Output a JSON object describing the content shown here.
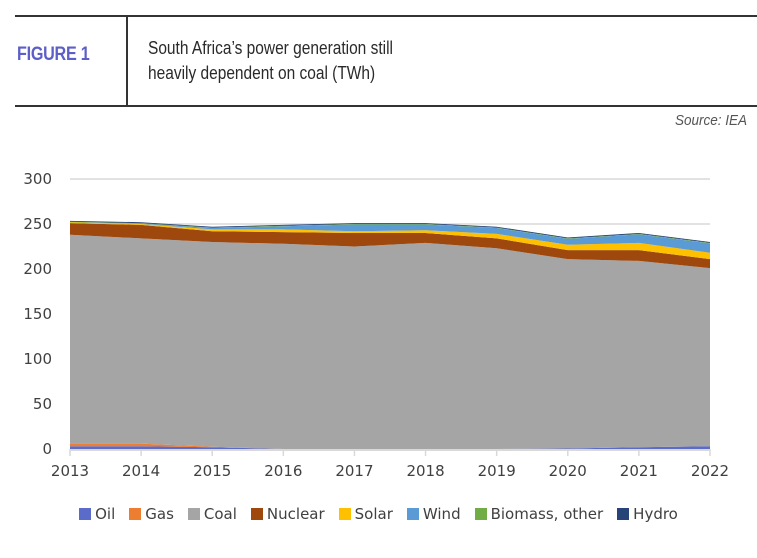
{
  "header": {
    "figure_label": "FIGURE 1",
    "title_line1": "South Africa’s power generation still",
    "title_line2": "heavily dependent on coal (TWh)",
    "source": "Source: IEA"
  },
  "chart_data": {
    "type": "area",
    "stacked": true,
    "title": "South Africa’s power generation still heavily dependent on coal (TWh)",
    "xlabel": "",
    "ylabel": "",
    "ylim": [
      0,
      300
    ],
    "yticks": [
      0,
      50,
      100,
      150,
      200,
      250,
      300
    ],
    "grid": true,
    "legend_position": "bottom",
    "categories": [
      "2013",
      "2014",
      "2015",
      "2016",
      "2017",
      "2018",
      "2019",
      "2020",
      "2021",
      "2022"
    ],
    "series": [
      {
        "name": "Oil",
        "color": "#5b6bc9",
        "values": [
          3,
          3,
          2,
          0,
          0,
          0,
          0,
          0.5,
          2,
          3
        ]
      },
      {
        "name": "Gas",
        "color": "#ed7d31",
        "values": [
          3,
          3,
          0.5,
          0,
          0,
          0,
          0,
          0,
          0,
          0
        ]
      },
      {
        "name": "Coal",
        "color": "#a5a5a5",
        "values": [
          232,
          228,
          227.5,
          228,
          225,
          229,
          223,
          210.5,
          207,
          198
        ]
      },
      {
        "name": "Nuclear",
        "color": "#9e480e",
        "values": [
          13,
          15,
          12,
          13,
          15,
          11,
          11,
          10,
          12,
          10
        ]
      },
      {
        "name": "Solar",
        "color": "#ffc000",
        "values": [
          1,
          1,
          2,
          3,
          2,
          3,
          5,
          6,
          8,
          7
        ]
      },
      {
        "name": "Wind",
        "color": "#5b9bd5",
        "values": [
          0,
          0.5,
          1.5,
          3.5,
          7.5,
          6.5,
          6.5,
          6.5,
          9.5,
          10.5
        ]
      },
      {
        "name": "Biomass, other",
        "color": "#70ad47",
        "values": [
          0.5,
          0.5,
          0.5,
          0.5,
          0.5,
          0.5,
          0.5,
          0.5,
          0.5,
          0.5
        ]
      },
      {
        "name": "Hydro",
        "color": "#264478",
        "values": [
          1,
          1,
          1,
          1,
          1,
          1,
          1,
          1,
          1,
          1
        ]
      }
    ]
  }
}
